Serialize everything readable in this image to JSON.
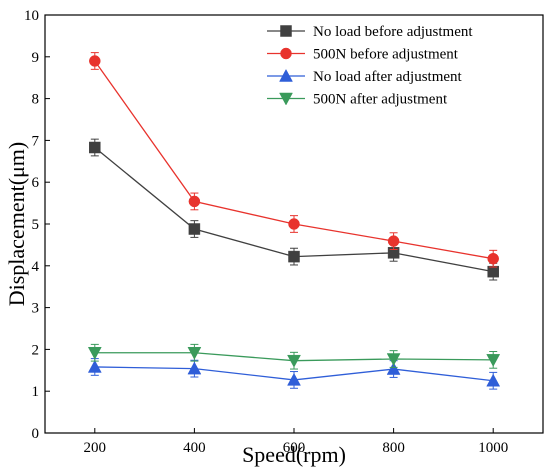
{
  "chart_data": {
    "type": "line",
    "x": [
      200,
      400,
      600,
      800,
      1000
    ],
    "xlabel": "Speed(rpm)",
    "ylabel": "Displacement(μm)",
    "xlim": [
      100,
      1100
    ],
    "ylim": [
      0,
      10
    ],
    "xticks": [
      200,
      400,
      600,
      800,
      1000
    ],
    "yticks": [
      0,
      1,
      2,
      3,
      4,
      5,
      6,
      7,
      8,
      9,
      10
    ],
    "grid": false,
    "legend_position": "top-right",
    "series": [
      {
        "name": "No load before adjustment",
        "color": "#404040",
        "marker": "square",
        "values": [
          6.83,
          4.88,
          4.22,
          4.31,
          3.86
        ],
        "errors": [
          0.2,
          0.2,
          0.2,
          0.2,
          0.2
        ]
      },
      {
        "name": "500N before adjustment",
        "color": "#e8332d",
        "marker": "circle",
        "values": [
          8.9,
          5.54,
          5.0,
          4.59,
          4.17
        ],
        "errors": [
          0.2,
          0.2,
          0.2,
          0.2,
          0.2
        ]
      },
      {
        "name": "No load after adjustment",
        "color": "#2f5ed8",
        "marker": "triangle-up",
        "values": [
          1.58,
          1.54,
          1.27,
          1.53,
          1.25
        ],
        "errors": [
          0.2,
          0.2,
          0.2,
          0.2,
          0.2
        ]
      },
      {
        "name": "500N after adjustment",
        "color": "#3a9a5b",
        "marker": "triangle-down",
        "values": [
          1.92,
          1.92,
          1.73,
          1.77,
          1.75
        ],
        "errors": [
          0.2,
          0.2,
          0.2,
          0.2,
          0.2
        ]
      }
    ]
  }
}
